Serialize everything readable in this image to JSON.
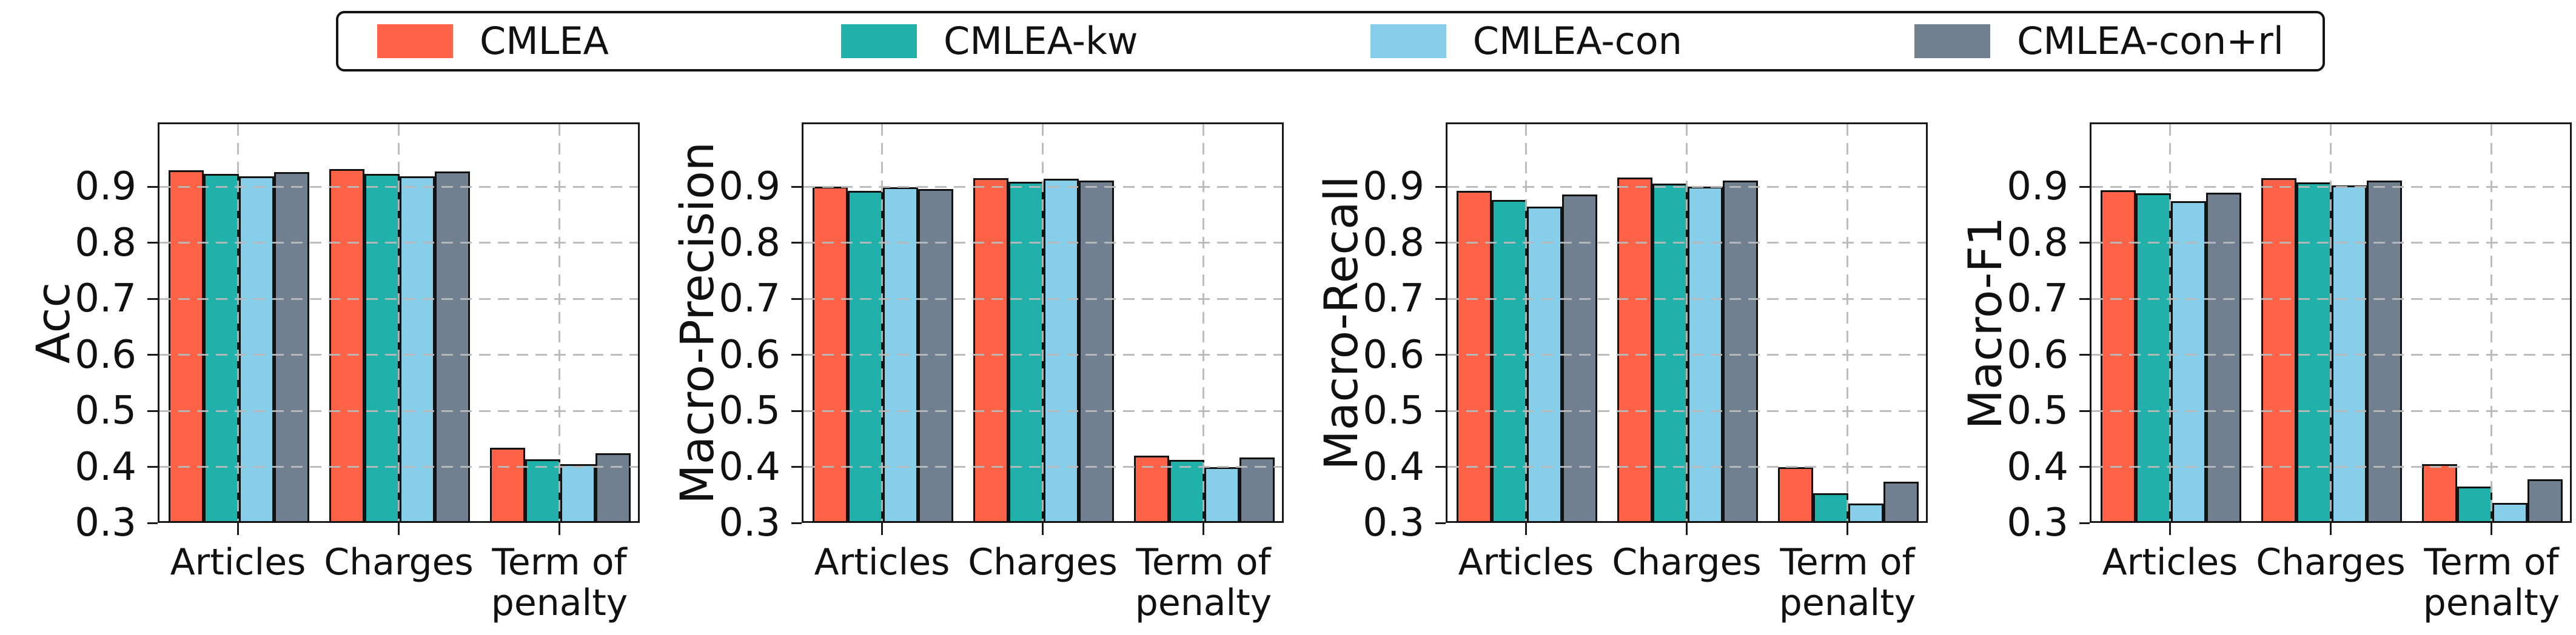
{
  "legend": {
    "items": [
      {
        "label": "CMLEA",
        "color": "#FF6347"
      },
      {
        "label": "CMLEA-kw",
        "color": "#20B2AA"
      },
      {
        "label": "CMLEA-con",
        "color": "#87CEEB"
      },
      {
        "label": "CMLEA-con+rl",
        "color": "#708090"
      }
    ]
  },
  "colors": {
    "bar_edge": "#121212",
    "axis": "#1a1a1a",
    "grid": "#b9b9b9",
    "background": "#ffffff"
  },
  "chart_data": [
    {
      "type": "bar",
      "ylabel": "Acc",
      "categories": [
        "Articles",
        "Charges",
        "Term of\npenalty"
      ],
      "yticks": [
        0.3,
        0.4,
        0.5,
        0.6,
        0.7,
        0.8,
        0.9
      ],
      "ylim": [
        0.3,
        1.015
      ],
      "grid": "dashed",
      "legend_position": "top",
      "series": [
        {
          "name": "CMLEA",
          "color": "#FF6347",
          "values": [
            0.93,
            0.932,
            0.434
          ]
        },
        {
          "name": "CMLEA-kw",
          "color": "#20B2AA",
          "values": [
            0.923,
            0.923,
            0.414
          ]
        },
        {
          "name": "CMLEA-con",
          "color": "#87CEEB",
          "values": [
            0.919,
            0.919,
            0.405
          ]
        },
        {
          "name": "CMLEA-con+rl",
          "color": "#708090",
          "values": [
            0.926,
            0.927,
            0.424
          ]
        }
      ]
    },
    {
      "type": "bar",
      "ylabel": "Macro-Precision",
      "categories": [
        "Articles",
        "Charges",
        "Term of\npenalty"
      ],
      "yticks": [
        0.3,
        0.4,
        0.5,
        0.6,
        0.7,
        0.8,
        0.9
      ],
      "ylim": [
        0.3,
        1.015
      ],
      "grid": "dashed",
      "legend_position": "top",
      "series": [
        {
          "name": "CMLEA",
          "color": "#FF6347",
          "values": [
            0.9,
            0.915,
            0.42
          ]
        },
        {
          "name": "CMLEA-kw",
          "color": "#20B2AA",
          "values": [
            0.893,
            0.909,
            0.413
          ]
        },
        {
          "name": "CMLEA-con",
          "color": "#87CEEB",
          "values": [
            0.899,
            0.914,
            0.4
          ]
        },
        {
          "name": "CMLEA-con+rl",
          "color": "#708090",
          "values": [
            0.896,
            0.911,
            0.417
          ]
        }
      ]
    },
    {
      "type": "bar",
      "ylabel": "Macro-Recall",
      "categories": [
        "Articles",
        "Charges",
        "Term of\npenalty"
      ],
      "yticks": [
        0.3,
        0.4,
        0.5,
        0.6,
        0.7,
        0.8,
        0.9
      ],
      "ylim": [
        0.3,
        1.015
      ],
      "grid": "dashed",
      "legend_position": "top",
      "series": [
        {
          "name": "CMLEA",
          "color": "#FF6347",
          "values": [
            0.893,
            0.917,
            0.4
          ]
        },
        {
          "name": "CMLEA-kw",
          "color": "#20B2AA",
          "values": [
            0.877,
            0.906,
            0.353
          ]
        },
        {
          "name": "CMLEA-con",
          "color": "#87CEEB",
          "values": [
            0.865,
            0.9,
            0.335
          ]
        },
        {
          "name": "CMLEA-con+rl",
          "color": "#708090",
          "values": [
            0.886,
            0.911,
            0.374
          ]
        }
      ]
    },
    {
      "type": "bar",
      "ylabel": "Macro-F1",
      "categories": [
        "Articles",
        "Charges",
        "Term of\npenalty"
      ],
      "yticks": [
        0.3,
        0.4,
        0.5,
        0.6,
        0.7,
        0.8,
        0.9
      ],
      "ylim": [
        0.3,
        1.015
      ],
      "grid": "dashed",
      "legend_position": "top",
      "series": [
        {
          "name": "CMLEA",
          "color": "#FF6347",
          "values": [
            0.894,
            0.915,
            0.405
          ]
        },
        {
          "name": "CMLEA-kw",
          "color": "#20B2AA",
          "values": [
            0.888,
            0.908,
            0.365
          ]
        },
        {
          "name": "CMLEA-con",
          "color": "#87CEEB",
          "values": [
            0.874,
            0.903,
            0.336
          ]
        },
        {
          "name": "CMLEA-con+rl",
          "color": "#708090",
          "values": [
            0.89,
            0.911,
            0.378
          ]
        }
      ]
    }
  ]
}
